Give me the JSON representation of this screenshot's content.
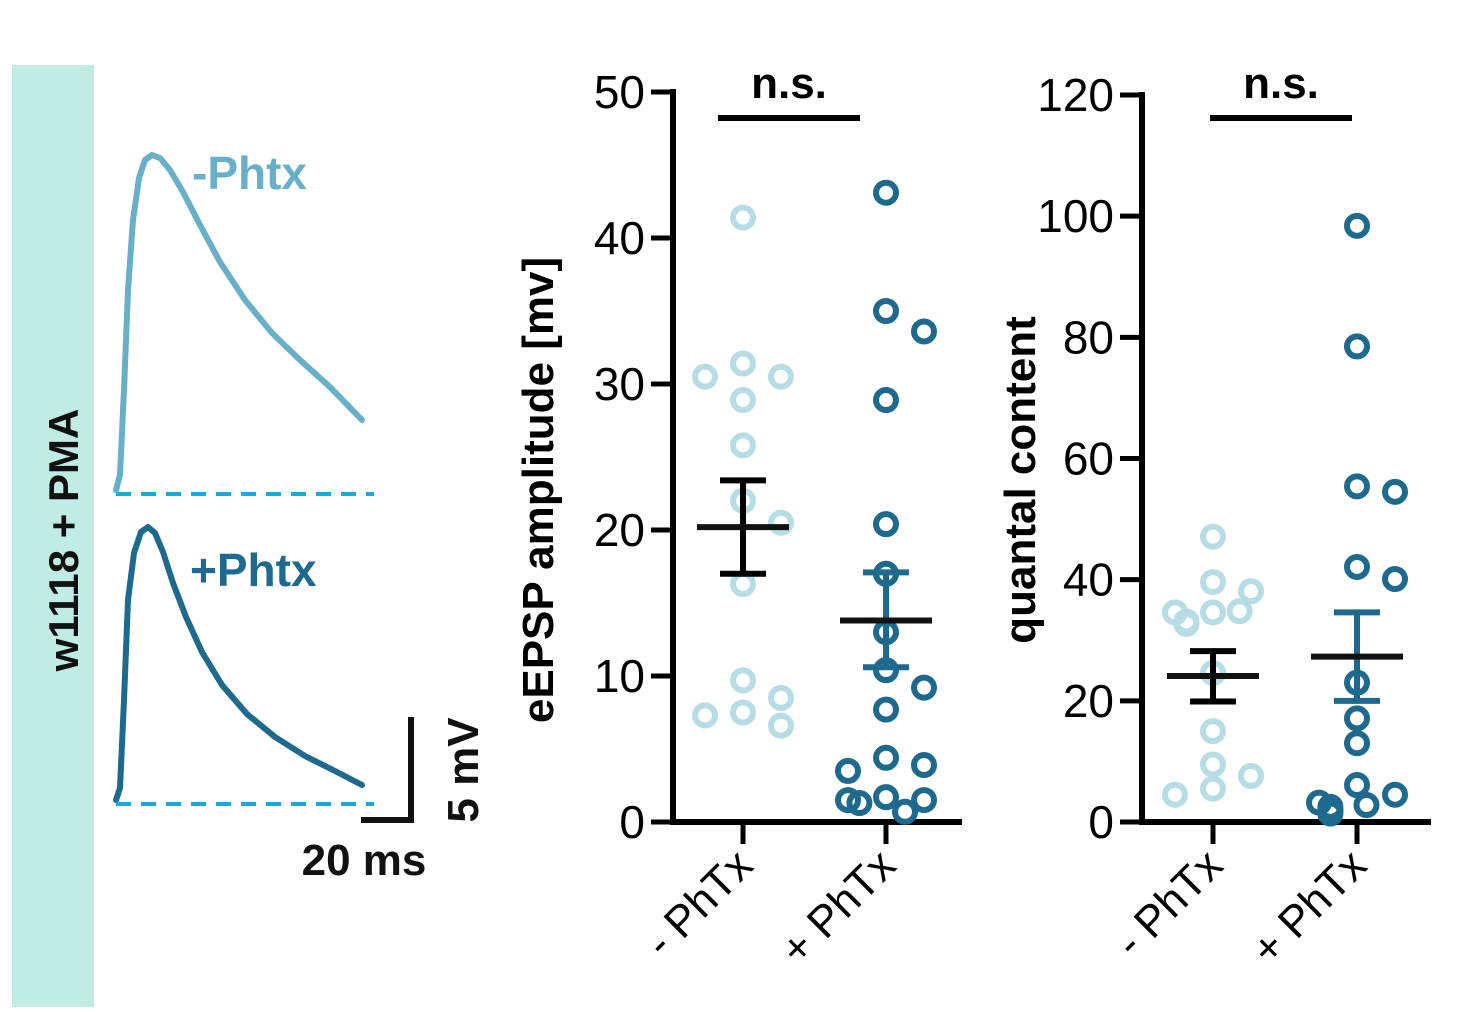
{
  "genotype_label": "w1118 + PMA",
  "genotype_band_color": "#c0ece3",
  "colors": {
    "minus": "#68afca",
    "plus": "#1d6a8e",
    "minus_dots": "#b6dce6",
    "baseline": "#1aa9dd"
  },
  "traces": {
    "minus_label": "-Phtx",
    "plus_label": "+Phtx",
    "scale_x_label": "20 ms",
    "scale_y_label": "5 mV"
  },
  "chart_data": [
    {
      "type": "scatter",
      "ylabel": "eEPSP amplitude [mv]",
      "ylim": [
        0,
        50
      ],
      "yticks": [
        0,
        10,
        20,
        30,
        40,
        50
      ],
      "categories": [
        "- PhTx",
        "+ PhTx"
      ],
      "significance": "n.s.",
      "series": [
        {
          "name": "- PhTx",
          "points": [
            41.4,
            31.4,
            30.5,
            30.5,
            28.9,
            25.8,
            22.0,
            20.5,
            16.3,
            9.7,
            8.5,
            7.5,
            7.3,
            6.6
          ],
          "mean": 20.2,
          "sem_upper": 23.4,
          "sem_lower": 17.0
        },
        {
          "name": "+ PhTx",
          "points": [
            43.1,
            35.0,
            33.6,
            28.9,
            20.4,
            17.0,
            13.0,
            10.4,
            9.2,
            7.7,
            4.4,
            3.9,
            3.5,
            1.7,
            1.5,
            1.5,
            1.3,
            0.7
          ],
          "mean": 13.8,
          "sem_upper": 17.1,
          "sem_lower": 10.6
        }
      ]
    },
    {
      "type": "scatter",
      "ylabel": "quantal content",
      "ylim": [
        0,
        120
      ],
      "yticks": [
        0,
        20,
        40,
        60,
        80,
        100,
        120
      ],
      "categories": [
        "- PhTx",
        "+ PhTx"
      ],
      "significance": "n.s.",
      "series": [
        {
          "name": "- PhTx",
          "points": [
            47.1,
            39.6,
            38.1,
            34.6,
            34.6,
            34.8,
            33.1,
            32.7,
            24.6,
            15.0,
            9.5,
            7.6,
            5.5,
            4.5
          ],
          "mean": 24.1,
          "sem_upper": 28.2,
          "sem_lower": 19.9
        },
        {
          "name": "+ PhTx",
          "points": [
            98.4,
            78.5,
            55.4,
            54.5,
            42.1,
            40.1,
            23.0,
            17.1,
            13.0,
            6.1,
            4.5,
            3.2,
            2.8,
            2.5,
            2.0,
            1.8,
            1.4
          ],
          "mean": 27.3,
          "sem_upper": 34.6,
          "sem_lower": 20.0
        }
      ]
    }
  ]
}
